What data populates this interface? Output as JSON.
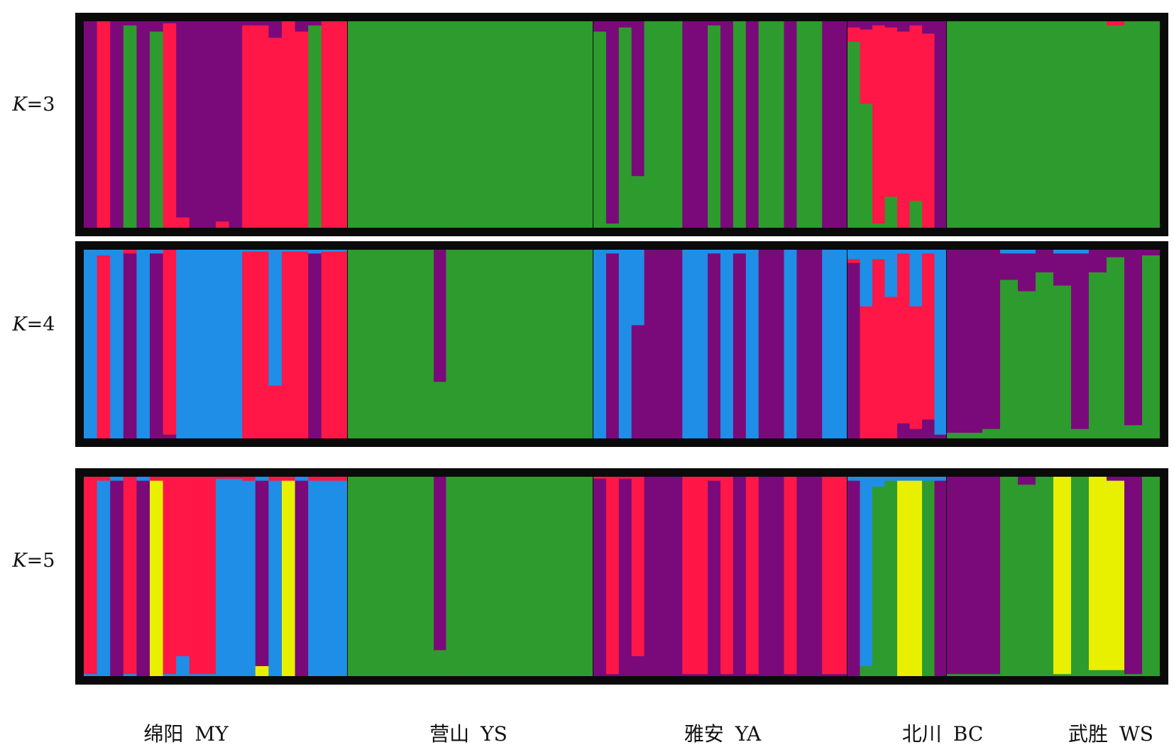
{
  "colors": {
    "purple": "#7a0a7a",
    "red": "#ff1747",
    "green": "#2e9b2e",
    "blue": "#1f8ee6",
    "yellow": "#e8f000",
    "black": "#0a0a0a"
  },
  "populations": [
    {
      "name": "绵阳",
      "code": "MY",
      "n": 20
    },
    {
      "name": "营山",
      "code": "YS",
      "n": 20
    },
    {
      "name": "雅安",
      "code": "YA",
      "n": 20
    },
    {
      "name": "北川",
      "code": "BC",
      "n": 8
    },
    {
      "name": "武胜",
      "code": "WS",
      "n": 12
    }
  ],
  "chart_data": [
    {
      "type": "bar",
      "k_label_prefix": "K",
      "k_label": "=3",
      "K": 3,
      "series_colors": [
        "purple",
        "red",
        "green"
      ],
      "ylim": [
        0,
        1
      ],
      "individuals": [
        [
          1,
          0,
          0
        ],
        [
          0,
          1,
          0
        ],
        [
          1,
          0,
          0
        ],
        [
          0.02,
          0,
          0.98
        ],
        [
          1,
          0,
          0
        ],
        [
          0.05,
          0,
          0.95
        ],
        [
          0.01,
          0.99,
          0
        ],
        [
          0.95,
          0.05,
          0
        ],
        [
          1,
          0,
          0
        ],
        [
          1,
          0,
          0
        ],
        [
          0.97,
          0.03,
          0
        ],
        [
          1,
          0,
          0
        ],
        [
          0.02,
          0.98,
          0
        ],
        [
          0.02,
          0.98,
          0
        ],
        [
          0.08,
          0.92,
          0
        ],
        [
          0,
          1,
          0
        ],
        [
          0.05,
          0.95,
          0
        ],
        [
          0.02,
          0,
          0.98
        ],
        [
          0,
          1,
          0
        ],
        [
          0,
          1,
          0
        ],
        [
          0,
          0,
          1
        ],
        [
          0,
          0,
          1
        ],
        [
          0,
          0,
          1
        ],
        [
          0,
          0,
          1
        ],
        [
          0,
          0,
          1
        ],
        [
          0,
          0,
          1
        ],
        [
          0,
          0,
          1
        ],
        [
          0,
          0,
          1
        ],
        [
          0,
          0,
          1
        ],
        [
          0,
          0,
          1
        ],
        [
          0,
          0,
          1
        ],
        [
          0,
          0,
          1
        ],
        [
          0,
          0,
          1
        ],
        [
          0,
          0,
          1
        ],
        [
          0,
          0,
          1
        ],
        [
          0,
          0,
          1
        ],
        [
          0,
          0,
          1
        ],
        [
          0,
          0,
          1
        ],
        [
          0,
          0,
          1
        ],
        [
          0,
          0,
          1
        ],
        [
          0.05,
          0,
          0.95
        ],
        [
          0.98,
          0,
          0.02
        ],
        [
          0.03,
          0,
          0.97
        ],
        [
          0.75,
          0,
          0.25
        ],
        [
          0,
          0,
          1
        ],
        [
          0,
          0,
          1
        ],
        [
          0,
          0,
          1
        ],
        [
          1,
          0,
          0
        ],
        [
          1,
          0,
          0
        ],
        [
          0.02,
          0,
          0.98
        ],
        [
          1,
          0,
          0
        ],
        [
          0,
          0,
          1
        ],
        [
          1,
          0,
          0
        ],
        [
          0,
          0,
          1
        ],
        [
          0,
          0,
          1
        ],
        [
          1,
          0,
          0
        ],
        [
          0,
          0,
          1
        ],
        [
          0,
          0,
          1
        ],
        [
          1,
          0,
          0
        ],
        [
          1,
          0,
          0
        ],
        [
          0.03,
          0.07,
          0.9
        ],
        [
          0.04,
          0.36,
          0.6
        ],
        [
          0.02,
          0.96,
          0.02
        ],
        [
          0.03,
          0.82,
          0.15
        ],
        [
          0.05,
          0.95,
          0
        ],
        [
          0.02,
          0.85,
          0.13
        ],
        [
          0.06,
          0.94,
          0
        ],
        [
          1,
          0,
          0
        ],
        [
          0,
          0,
          1
        ],
        [
          0,
          0,
          1
        ],
        [
          0,
          0,
          1
        ],
        [
          0,
          0,
          1
        ],
        [
          0,
          0,
          1
        ],
        [
          0,
          0,
          1
        ],
        [
          0,
          0,
          1
        ],
        [
          0,
          0,
          1
        ],
        [
          0,
          0,
          1
        ],
        [
          0,
          0.02,
          0.98
        ],
        [
          0,
          0,
          1
        ],
        [
          0,
          0,
          1
        ]
      ]
    },
    {
      "type": "bar",
      "k_label_prefix": "K",
      "k_label": "=4",
      "K": 4,
      "series_colors": [
        "blue",
        "red",
        "purple",
        "green"
      ],
      "ylim": [
        0,
        1
      ],
      "individuals": [
        [
          1,
          0,
          0,
          0
        ],
        [
          0.03,
          0.97,
          0,
          0
        ],
        [
          1,
          0,
          0,
          0
        ],
        [
          0,
          0.02,
          0.98,
          0
        ],
        [
          1,
          0,
          0,
          0
        ],
        [
          0.02,
          0,
          0.98,
          0
        ],
        [
          0,
          0.98,
          0.02,
          0
        ],
        [
          1,
          0,
          0,
          0
        ],
        [
          1,
          0,
          0,
          0
        ],
        [
          1,
          0,
          0,
          0
        ],
        [
          1,
          0,
          0,
          0
        ],
        [
          1,
          0,
          0,
          0
        ],
        [
          0.01,
          0.99,
          0,
          0
        ],
        [
          0.01,
          0.99,
          0,
          0
        ],
        [
          0.72,
          0.28,
          0,
          0
        ],
        [
          0.01,
          0.99,
          0,
          0
        ],
        [
          0.01,
          0.99,
          0,
          0
        ],
        [
          0.02,
          0,
          0.98,
          0
        ],
        [
          0.01,
          0.99,
          0,
          0
        ],
        [
          0.01,
          0.99,
          0,
          0
        ],
        [
          0,
          0,
          0,
          1
        ],
        [
          0,
          0,
          0,
          1
        ],
        [
          0,
          0,
          0,
          1
        ],
        [
          0,
          0,
          0,
          1
        ],
        [
          0,
          0,
          0,
          1
        ],
        [
          0,
          0,
          0,
          1
        ],
        [
          0,
          0,
          0,
          1
        ],
        [
          0,
          0,
          0.7,
          0.3
        ],
        [
          0,
          0,
          0,
          1
        ],
        [
          0,
          0,
          0,
          1
        ],
        [
          0,
          0,
          0,
          1
        ],
        [
          0,
          0,
          0,
          1
        ],
        [
          0,
          0,
          0,
          1
        ],
        [
          0,
          0,
          0,
          1
        ],
        [
          0,
          0,
          0,
          1
        ],
        [
          0,
          0,
          0,
          1
        ],
        [
          0,
          0,
          0,
          1
        ],
        [
          0,
          0,
          0,
          1
        ],
        [
          0,
          0,
          0,
          1
        ],
        [
          0,
          0,
          0,
          1
        ],
        [
          1,
          0,
          0,
          0
        ],
        [
          0.02,
          0,
          0.98,
          0
        ],
        [
          1,
          0,
          0,
          0
        ],
        [
          0.4,
          0,
          0.6,
          0
        ],
        [
          0,
          0,
          1,
          0
        ],
        [
          0,
          0,
          1,
          0
        ],
        [
          0,
          0,
          1,
          0
        ],
        [
          1,
          0,
          0,
          0
        ],
        [
          1,
          0,
          0,
          0
        ],
        [
          0.02,
          0,
          0.98,
          0
        ],
        [
          1,
          0,
          0,
          0
        ],
        [
          0.02,
          0,
          0.98,
          0
        ],
        [
          1,
          0,
          0,
          0
        ],
        [
          0,
          0,
          1,
          0
        ],
        [
          0,
          0,
          1,
          0
        ],
        [
          1,
          0,
          0,
          0
        ],
        [
          0,
          0,
          1,
          0
        ],
        [
          0,
          0,
          1,
          0
        ],
        [
          1,
          0,
          0,
          0
        ],
        [
          1,
          0,
          0,
          0
        ],
        [
          0.05,
          0.02,
          0.93,
          0
        ],
        [
          0.3,
          0.7,
          0,
          0
        ],
        [
          0.05,
          0.95,
          0,
          0
        ],
        [
          0.25,
          0.75,
          0,
          0
        ],
        [
          0.02,
          0.9,
          0.08,
          0
        ],
        [
          0.3,
          0.65,
          0.05,
          0
        ],
        [
          0.02,
          0.88,
          0.1,
          0
        ],
        [
          0.98,
          0,
          0.02,
          0
        ],
        [
          0,
          0,
          0.97,
          0.03
        ],
        [
          0,
          0,
          0.97,
          0.03
        ],
        [
          0,
          0,
          0.95,
          0.05
        ],
        [
          0.02,
          0,
          0.14,
          0.84
        ],
        [
          0.02,
          0,
          0.2,
          0.78
        ],
        [
          0,
          0,
          0.12,
          0.88
        ],
        [
          0.02,
          0,
          0.17,
          0.81
        ],
        [
          0.02,
          0,
          0.93,
          0.05
        ],
        [
          0,
          0,
          0.12,
          0.88
        ],
        [
          0,
          0,
          0.04,
          0.96
        ],
        [
          0,
          0,
          0.93,
          0.07
        ],
        [
          0,
          0,
          0.03,
          0.97
        ]
      ]
    },
    {
      "type": "bar",
      "k_label_prefix": "K",
      "k_label": "=5",
      "K": 5,
      "series_colors": [
        "red",
        "blue",
        "purple",
        "yellow",
        "green"
      ],
      "ylim": [
        0,
        1
      ],
      "individuals": [
        [
          0.99,
          0.01,
          0,
          0,
          0
        ],
        [
          0.02,
          0.98,
          0,
          0,
          0
        ],
        [
          0,
          0.02,
          0.98,
          0,
          0
        ],
        [
          0.99,
          0.01,
          0,
          0,
          0
        ],
        [
          0,
          0.02,
          0.98,
          0,
          0
        ],
        [
          0.02,
          0,
          0,
          0.98,
          0
        ],
        [
          0.99,
          0.01,
          0,
          0,
          0
        ],
        [
          0.9,
          0.1,
          0,
          0,
          0
        ],
        [
          0.99,
          0.01,
          0,
          0,
          0
        ],
        [
          0.99,
          0.01,
          0,
          0,
          0
        ],
        [
          0.01,
          0.99,
          0,
          0,
          0
        ],
        [
          0.01,
          0.99,
          0,
          0,
          0
        ],
        [
          0.02,
          0.98,
          0,
          0,
          0
        ],
        [
          0,
          0.02,
          0.93,
          0.05,
          0
        ],
        [
          0.02,
          0.98,
          0,
          0,
          0
        ],
        [
          0.02,
          0,
          0,
          0.98,
          0
        ],
        [
          0,
          0.02,
          0.98,
          0,
          0
        ],
        [
          0.02,
          0.98,
          0,
          0,
          0
        ],
        [
          0.02,
          0.98,
          0,
          0,
          0
        ],
        [
          0.02,
          0.98,
          0,
          0,
          0
        ],
        [
          0,
          0,
          0,
          0,
          1
        ],
        [
          0,
          0,
          0,
          0,
          1
        ],
        [
          0,
          0,
          0,
          0,
          1
        ],
        [
          0,
          0,
          0,
          0,
          1
        ],
        [
          0,
          0,
          0,
          0,
          1
        ],
        [
          0,
          0,
          0,
          0,
          1
        ],
        [
          0,
          0,
          0,
          0,
          1
        ],
        [
          0,
          0,
          0.87,
          0,
          0.13
        ],
        [
          0,
          0,
          0,
          0,
          1
        ],
        [
          0,
          0,
          0,
          0,
          1
        ],
        [
          0,
          0,
          0,
          0,
          1
        ],
        [
          0,
          0,
          0,
          0,
          1
        ],
        [
          0,
          0,
          0,
          0,
          1
        ],
        [
          0,
          0,
          0,
          0,
          1
        ],
        [
          0,
          0,
          0,
          0,
          1
        ],
        [
          0,
          0,
          0,
          0,
          1
        ],
        [
          0,
          0,
          0,
          0,
          1
        ],
        [
          0,
          0,
          0,
          0,
          1
        ],
        [
          0,
          0,
          0,
          0,
          1
        ],
        [
          0,
          0,
          0,
          0,
          1
        ],
        [
          0.01,
          0,
          0.99,
          0,
          0
        ],
        [
          0.99,
          0,
          0.01,
          0,
          0
        ],
        [
          0.01,
          0,
          0.99,
          0,
          0
        ],
        [
          0.9,
          0,
          0.1,
          0,
          0
        ],
        [
          0,
          0,
          1,
          0,
          0
        ],
        [
          0,
          0,
          1,
          0,
          0
        ],
        [
          0,
          0,
          1,
          0,
          0
        ],
        [
          0.99,
          0,
          0.01,
          0,
          0
        ],
        [
          0.99,
          0,
          0.01,
          0,
          0
        ],
        [
          0.02,
          0,
          0.98,
          0,
          0
        ],
        [
          0.99,
          0,
          0.01,
          0,
          0
        ],
        [
          0,
          0,
          1,
          0,
          0
        ],
        [
          0.99,
          0,
          0.01,
          0,
          0
        ],
        [
          0,
          0,
          1,
          0,
          0
        ],
        [
          0,
          0,
          1,
          0,
          0
        ],
        [
          0.99,
          0,
          0.01,
          0,
          0
        ],
        [
          0,
          0,
          1,
          0,
          0
        ],
        [
          0,
          0,
          1,
          0,
          0
        ],
        [
          0.99,
          0,
          0.01,
          0,
          0
        ],
        [
          0.99,
          0,
          0.01,
          0,
          0
        ],
        [
          0,
          0.02,
          0.98,
          0,
          0
        ],
        [
          0,
          0.95,
          0,
          0,
          0.05
        ],
        [
          0,
          0.05,
          0,
          0,
          0.95
        ],
        [
          0,
          0.02,
          0,
          0,
          0.98
        ],
        [
          0,
          0.02,
          0,
          0.98,
          0
        ],
        [
          0,
          0.02,
          0,
          0.98,
          0
        ],
        [
          0,
          0.02,
          0,
          0,
          0.98
        ],
        [
          0,
          0.02,
          0.98,
          0,
          0
        ],
        [
          0,
          0,
          0.99,
          0,
          0.01
        ],
        [
          0,
          0,
          0.99,
          0,
          0.01
        ],
        [
          0,
          0,
          0.99,
          0,
          0.01
        ],
        [
          0,
          0,
          0,
          0,
          1
        ],
        [
          0,
          0,
          0.04,
          0,
          0.96
        ],
        [
          0,
          0,
          0,
          0,
          1
        ],
        [
          0,
          0,
          0,
          0.99,
          0.01
        ],
        [
          0,
          0,
          0,
          0,
          1
        ],
        [
          0,
          0,
          0,
          0.97,
          0.03
        ],
        [
          0,
          0,
          0.02,
          0.95,
          0.03
        ],
        [
          0,
          0,
          0.99,
          0,
          0.01
        ],
        [
          0,
          0,
          0,
          0,
          1
        ]
      ]
    }
  ]
}
